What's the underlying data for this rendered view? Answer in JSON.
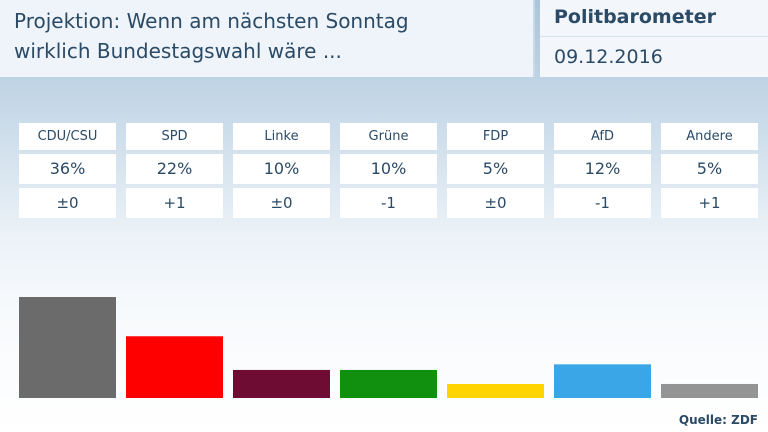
{
  "header": {
    "title_line1": "Projektion: Wenn am nächsten Sonntag",
    "title_line2": "wirklich Bundestagswahl wäre ...",
    "brand": "Politbarometer",
    "date": "09.12.2016"
  },
  "table": [
    {
      "party": "CDU/CSU",
      "pct": "36%",
      "delta": "±0"
    },
    {
      "party": "SPD",
      "pct": "22%",
      "delta": "+1"
    },
    {
      "party": "Linke",
      "pct": "10%",
      "delta": "±0"
    },
    {
      "party": "Grüne",
      "pct": "10%",
      "delta": "-1"
    },
    {
      "party": "FDP",
      "pct": "5%",
      "delta": "±0"
    },
    {
      "party": "AfD",
      "pct": "12%",
      "delta": "-1"
    },
    {
      "party": "Andere",
      "pct": "5%",
      "delta": "+1"
    }
  ],
  "chart_data": {
    "type": "bar",
    "categories": [
      "CDU/CSU",
      "SPD",
      "Linke",
      "Grüne",
      "FDP",
      "AfD",
      "Andere"
    ],
    "values": [
      36,
      22,
      10,
      10,
      5,
      12,
      5
    ],
    "colors": [
      "#6b6b6b",
      "#ff0000",
      "#6e0c33",
      "#10900e",
      "#ffd400",
      "#3aa6e8",
      "#949494"
    ],
    "ylim": [
      0,
      36
    ],
    "grid": false
  },
  "source": "Quelle: ZDF"
}
